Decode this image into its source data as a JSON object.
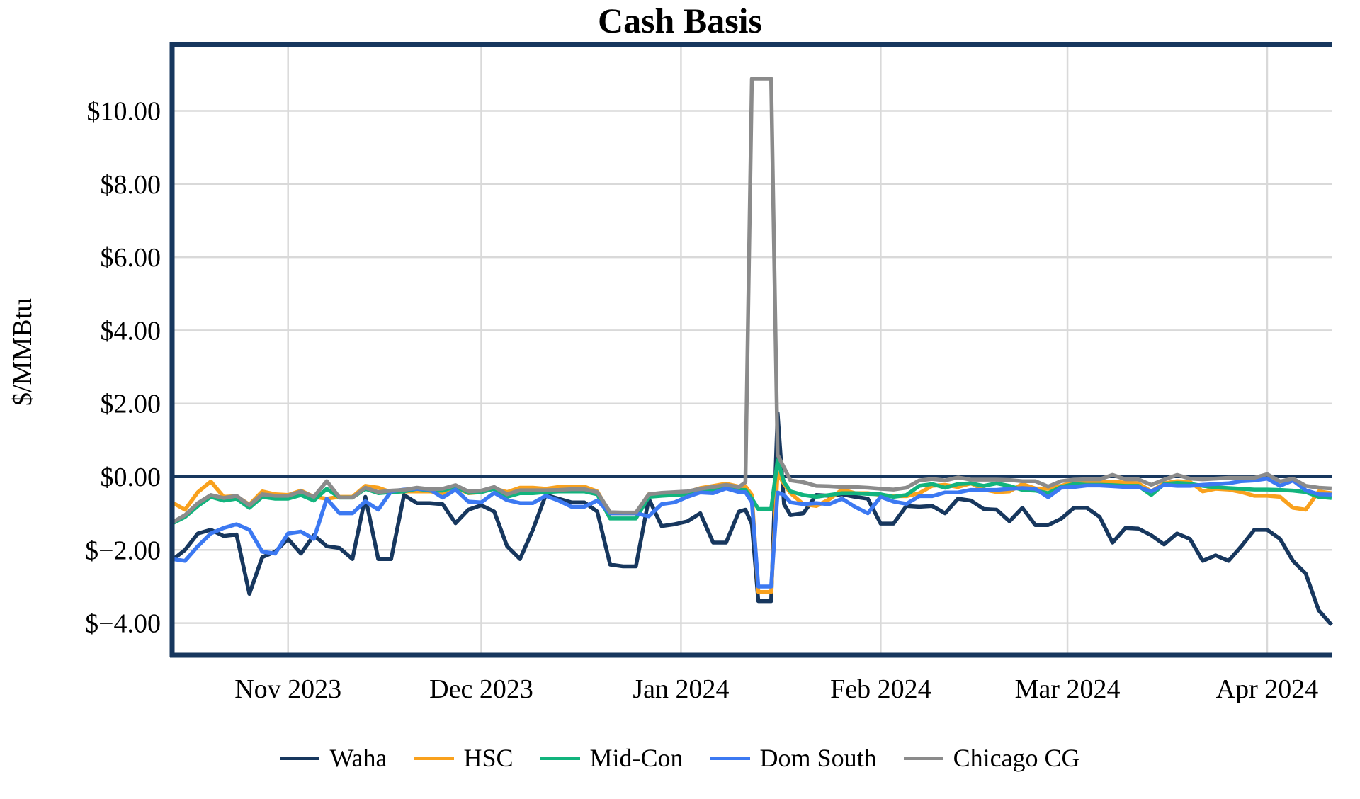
{
  "title": "Cash Basis",
  "y_axis": {
    "label": "$/MMBtu",
    "tick_labels": [
      "$10.00",
      "$8.00",
      "$6.00",
      "$4.00",
      "$2.00",
      "$0.00",
      "$−2.00",
      "$−4.00"
    ],
    "tick_values": [
      10,
      8,
      6,
      4,
      2,
      0,
      -2,
      -4
    ]
  },
  "x_axis": {
    "tick_labels": [
      "Nov 2023",
      "Dec 2023",
      "Jan 2024",
      "Feb 2024",
      "Mar 2024",
      "Apr 2024"
    ],
    "tick_days": [
      18,
      48,
      79,
      110,
      139,
      170
    ]
  },
  "colors": {
    "axis": "#17375e",
    "zero_line": "#17375e",
    "grid": "#d9d9d9",
    "waha": "#17375e",
    "hsc": "#f9a11d",
    "midcon": "#12b47d",
    "domsouth": "#3c79f2",
    "chicago": "#8b8b8b"
  },
  "chart_data": {
    "type": "line",
    "title": "Cash Basis",
    "ylabel": "$/MMBtu",
    "ylim": [
      -4.88,
      11.81
    ],
    "grid": true,
    "legend_position": "bottom",
    "x_unit": "days since 2023-10-14 (month ticks at Nov 1, Dec 1, Jan 1, Feb 1, Mar 1, Apr 1)",
    "x_days": [
      0,
      2,
      4,
      6,
      8,
      10,
      12,
      14,
      16,
      18,
      20,
      22,
      24,
      26,
      28,
      30,
      32,
      34,
      36,
      38,
      40,
      42,
      44,
      46,
      48,
      50,
      52,
      54,
      56,
      58,
      60,
      62,
      64,
      66,
      68,
      70,
      72,
      74,
      76,
      78,
      80,
      82,
      84,
      86,
      88,
      89,
      90,
      91,
      92,
      93,
      94,
      95,
      96,
      98,
      100,
      102,
      104,
      106,
      108,
      110,
      112,
      114,
      116,
      118,
      120,
      122,
      124,
      126,
      128,
      130,
      132,
      134,
      136,
      138,
      140,
      142,
      144,
      146,
      148,
      150,
      152,
      154,
      156,
      158,
      160,
      162,
      164,
      166,
      168,
      170,
      172,
      174,
      176,
      178,
      180
    ],
    "series": [
      {
        "name": "Waha",
        "color_key": "waha",
        "values": [
          -2.28,
          -2.0,
          -1.55,
          -1.45,
          -1.62,
          -1.58,
          -3.2,
          -2.2,
          -2.05,
          -1.7,
          -2.1,
          -1.6,
          -1.9,
          -1.95,
          -2.25,
          -0.55,
          -2.25,
          -2.25,
          -0.5,
          -0.72,
          -0.72,
          -0.75,
          -1.27,
          -0.9,
          -0.78,
          -0.95,
          -1.9,
          -2.25,
          -1.45,
          -0.5,
          -0.6,
          -0.7,
          -0.7,
          -0.95,
          -2.4,
          -2.45,
          -2.45,
          -0.6,
          -1.35,
          -1.3,
          -1.22,
          -1.0,
          -1.8,
          -1.8,
          -0.95,
          -0.9,
          -1.3,
          -3.4,
          -3.4,
          -3.4,
          1.74,
          -0.75,
          -1.05,
          -1.0,
          -0.5,
          -0.52,
          -0.48,
          -0.55,
          -0.6,
          -1.28,
          -1.28,
          -0.8,
          -0.82,
          -0.8,
          -1.0,
          -0.6,
          -0.65,
          -0.88,
          -0.9,
          -1.22,
          -0.85,
          -1.32,
          -1.32,
          -1.15,
          -0.85,
          -0.85,
          -1.1,
          -1.8,
          -1.4,
          -1.42,
          -1.6,
          -1.85,
          -1.55,
          -1.7,
          -2.3,
          -2.15,
          -2.3,
          -1.9,
          -1.45,
          -1.45,
          -1.7,
          -2.3,
          -2.65,
          -3.65,
          -4.05
        ]
      },
      {
        "name": "HSC",
        "color_key": "hsc",
        "values": [
          -0.7,
          -0.9,
          -0.42,
          -0.13,
          -0.55,
          -0.53,
          -0.76,
          -0.4,
          -0.48,
          -0.5,
          -0.38,
          -0.55,
          -0.6,
          -0.55,
          -0.55,
          -0.25,
          -0.3,
          -0.42,
          -0.4,
          -0.4,
          -0.4,
          -0.45,
          -0.3,
          -0.45,
          -0.42,
          -0.32,
          -0.42,
          -0.3,
          -0.3,
          -0.33,
          -0.28,
          -0.27,
          -0.27,
          -0.4,
          -1.0,
          -1.0,
          -1.0,
          -0.48,
          -0.45,
          -0.44,
          -0.42,
          -0.31,
          -0.25,
          -0.19,
          -0.27,
          -0.26,
          -0.5,
          -3.15,
          -3.15,
          -3.15,
          0.1,
          -0.2,
          -0.45,
          -0.75,
          -0.8,
          -0.62,
          -0.35,
          -0.45,
          -0.45,
          -0.5,
          -0.53,
          -0.53,
          -0.45,
          -0.25,
          -0.22,
          -0.28,
          -0.18,
          -0.35,
          -0.42,
          -0.4,
          -0.2,
          -0.32,
          -0.33,
          -0.25,
          -0.15,
          -0.14,
          -0.14,
          -0.14,
          -0.16,
          -0.18,
          -0.4,
          -0.18,
          -0.12,
          -0.14,
          -0.4,
          -0.33,
          -0.35,
          -0.42,
          -0.52,
          -0.52,
          -0.55,
          -0.85,
          -0.9,
          -0.4,
          -0.45
        ]
      },
      {
        "name": "Mid-Con",
        "color_key": "midcon",
        "values": [
          -1.28,
          -1.1,
          -0.8,
          -0.55,
          -0.65,
          -0.6,
          -0.85,
          -0.55,
          -0.6,
          -0.6,
          -0.5,
          -0.65,
          -0.33,
          -0.57,
          -0.57,
          -0.33,
          -0.45,
          -0.42,
          -0.4,
          -0.33,
          -0.38,
          -0.38,
          -0.27,
          -0.44,
          -0.42,
          -0.33,
          -0.55,
          -0.45,
          -0.45,
          -0.42,
          -0.4,
          -0.4,
          -0.4,
          -0.48,
          -1.14,
          -1.14,
          -1.14,
          -0.55,
          -0.52,
          -0.5,
          -0.48,
          -0.42,
          -0.36,
          -0.29,
          -0.36,
          -0.36,
          -0.6,
          -0.88,
          -0.88,
          -0.88,
          0.45,
          -0.15,
          -0.4,
          -0.5,
          -0.55,
          -0.5,
          -0.45,
          -0.45,
          -0.47,
          -0.48,
          -0.55,
          -0.5,
          -0.25,
          -0.2,
          -0.3,
          -0.2,
          -0.18,
          -0.25,
          -0.18,
          -0.25,
          -0.36,
          -0.38,
          -0.45,
          -0.28,
          -0.2,
          -0.22,
          -0.22,
          -0.23,
          -0.25,
          -0.25,
          -0.5,
          -0.2,
          -0.17,
          -0.19,
          -0.25,
          -0.29,
          -0.31,
          -0.33,
          -0.35,
          -0.35,
          -0.36,
          -0.38,
          -0.42,
          -0.55,
          -0.58
        ]
      },
      {
        "name": "Dom South",
        "color_key": "domsouth",
        "values": [
          -2.25,
          -2.3,
          -1.9,
          -1.55,
          -1.4,
          -1.3,
          -1.45,
          -2.05,
          -2.1,
          -1.55,
          -1.5,
          -1.7,
          -0.6,
          -1.0,
          -1.0,
          -0.67,
          -0.9,
          -0.4,
          -0.35,
          -0.33,
          -0.35,
          -0.57,
          -0.35,
          -0.68,
          -0.7,
          -0.44,
          -0.64,
          -0.72,
          -0.72,
          -0.52,
          -0.65,
          -0.82,
          -0.82,
          -0.65,
          -1.0,
          -1.0,
          -1.0,
          -1.08,
          -0.75,
          -0.7,
          -0.55,
          -0.43,
          -0.45,
          -0.32,
          -0.42,
          -0.42,
          -0.7,
          -3.0,
          -3.0,
          -3.0,
          -0.43,
          -0.5,
          -0.7,
          -0.75,
          -0.72,
          -0.75,
          -0.6,
          -0.82,
          -1.0,
          -0.55,
          -0.68,
          -0.74,
          -0.53,
          -0.53,
          -0.43,
          -0.43,
          -0.36,
          -0.36,
          -0.36,
          -0.33,
          -0.31,
          -0.33,
          -0.56,
          -0.3,
          -0.28,
          -0.24,
          -0.24,
          -0.26,
          -0.28,
          -0.28,
          -0.4,
          -0.22,
          -0.25,
          -0.25,
          -0.22,
          -0.2,
          -0.18,
          -0.12,
          -0.1,
          -0.05,
          -0.25,
          -0.1,
          -0.37,
          -0.48,
          -0.49
        ]
      },
      {
        "name": "Chicago CG",
        "color_key": "chicago",
        "values": [
          -1.25,
          -1.05,
          -0.72,
          -0.5,
          -0.58,
          -0.52,
          -0.78,
          -0.48,
          -0.52,
          -0.52,
          -0.4,
          -0.55,
          -0.12,
          -0.57,
          -0.57,
          -0.3,
          -0.42,
          -0.38,
          -0.36,
          -0.3,
          -0.34,
          -0.33,
          -0.23,
          -0.4,
          -0.38,
          -0.28,
          -0.48,
          -0.37,
          -0.37,
          -0.37,
          -0.36,
          -0.34,
          -0.34,
          -0.42,
          -0.97,
          -0.98,
          -0.98,
          -0.48,
          -0.44,
          -0.42,
          -0.4,
          -0.33,
          -0.28,
          -0.22,
          -0.28,
          -0.15,
          10.88,
          10.88,
          10.88,
          10.88,
          0.6,
          0.25,
          -0.1,
          -0.15,
          -0.25,
          -0.26,
          -0.28,
          -0.28,
          -0.3,
          -0.33,
          -0.35,
          -0.3,
          -0.1,
          -0.06,
          -0.1,
          -0.02,
          -0.08,
          -0.08,
          -0.08,
          -0.09,
          -0.12,
          -0.12,
          -0.27,
          -0.12,
          -0.08,
          -0.07,
          -0.07,
          0.05,
          -0.07,
          -0.07,
          -0.22,
          -0.08,
          0.05,
          -0.05,
          -0.07,
          -0.05,
          -0.03,
          -0.03,
          -0.03,
          0.07,
          -0.13,
          -0.05,
          -0.25,
          -0.3,
          -0.32
        ]
      }
    ]
  },
  "legend": {
    "items": [
      {
        "label": "Waha",
        "color_key": "waha"
      },
      {
        "label": "HSC",
        "color_key": "hsc"
      },
      {
        "label": "Mid-Con",
        "color_key": "midcon"
      },
      {
        "label": "Dom South",
        "color_key": "domsouth"
      },
      {
        "label": "Chicago CG",
        "color_key": "chicago"
      }
    ]
  }
}
